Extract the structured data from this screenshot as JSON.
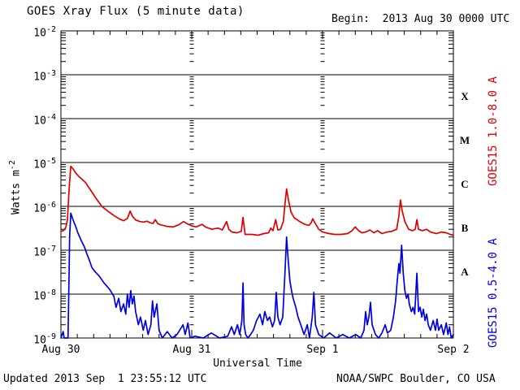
{
  "title": "GOES Xray Flux (5 minute data)",
  "begin_label": "Begin:  2013 Aug 30 0000 UTC",
  "footer": {
    "updated": "Updated 2013 Sep  1 23:55:12 UTC",
    "source": "NOAA/SWPC Boulder, CO USA"
  },
  "right_axis": {
    "classes": [
      "X",
      "M",
      "C",
      "B",
      "A"
    ],
    "series_labels": [
      {
        "text": "GOES15 1.0-8.0 A",
        "color": "#dd0000"
      },
      {
        "text": "GOES15 0.5-4.0 A",
        "color": "#0000dd"
      }
    ]
  },
  "colors": {
    "long_channel": "#dd0000",
    "short_channel": "#0000dd",
    "axis": "#000000",
    "background": "#ffffff"
  },
  "chart_data": {
    "type": "line",
    "title": "GOES Xray Flux (5 minute data)",
    "xlabel": "Universal Time",
    "ylabel_base": "Watts m",
    "ylabel_exp": "-2",
    "x_begin": "2013 Aug 30 0000 UTC",
    "x_range_hours": [
      0,
      72
    ],
    "x_tick_labels": [
      "Aug 30",
      "Aug 31",
      "Sep 1",
      "Sep 2"
    ],
    "x_tick_hours": [
      0,
      24,
      48,
      72
    ],
    "x_minor_tick_hours": 3,
    "y_scale": "log",
    "y_tick_exponents": [
      -2,
      -3,
      -4,
      -5,
      -6,
      -7,
      -8,
      -9
    ],
    "ylim": [
      1e-09,
      0.01
    ],
    "grid": true,
    "legend_position": "right-rotated",
    "series": [
      {
        "name": "GOES15 1.0-8.0 A",
        "color": "#dd0000",
        "points": [
          [
            0,
            2.7e-07
          ],
          [
            0.45,
            2.8e-07
          ],
          [
            0.9,
            3.3e-07
          ],
          [
            1.2,
            5e-07
          ],
          [
            1.5,
            2.5e-06
          ],
          [
            1.8,
            8.2e-06
          ],
          [
            2.2,
            7.2e-06
          ],
          [
            2.7,
            5.8e-06
          ],
          [
            3.3,
            4.8e-06
          ],
          [
            3.9,
            4.1e-06
          ],
          [
            4.5,
            3.5e-06
          ],
          [
            5.5,
            2.3e-06
          ],
          [
            6.4,
            1.55e-06
          ],
          [
            7.5,
            1e-06
          ],
          [
            8.7,
            7.6e-07
          ],
          [
            9.7,
            6.2e-07
          ],
          [
            10.7,
            5.2e-07
          ],
          [
            11.5,
            4.7e-07
          ],
          [
            12.2,
            5.3e-07
          ],
          [
            12.7,
            7.8e-07
          ],
          [
            13.1,
            6e-07
          ],
          [
            13.7,
            4.9e-07
          ],
          [
            14.5,
            4.5e-07
          ],
          [
            15.2,
            4.4e-07
          ],
          [
            15.8,
            4.6e-07
          ],
          [
            16.4,
            4.2e-07
          ],
          [
            16.9,
            4.1e-07
          ],
          [
            17.3,
            5e-07
          ],
          [
            17.8,
            4e-07
          ],
          [
            18.3,
            3.8e-07
          ],
          [
            19.4,
            3.5e-07
          ],
          [
            20.6,
            3.4e-07
          ],
          [
            21.6,
            3.8e-07
          ],
          [
            22.5,
            4.5e-07
          ],
          [
            23.2,
            4e-07
          ],
          [
            24.0,
            3.6e-07
          ],
          [
            24.8,
            3.4e-07
          ],
          [
            25.9,
            3.9e-07
          ],
          [
            26.5,
            3.4e-07
          ],
          [
            27.7,
            3e-07
          ],
          [
            28.8,
            3.2e-07
          ],
          [
            29.6,
            2.9e-07
          ],
          [
            30.4,
            4.5e-07
          ],
          [
            30.8,
            3e-07
          ],
          [
            31.4,
            2.6e-07
          ],
          [
            32.3,
            2.5e-07
          ],
          [
            33.1,
            2.7e-07
          ],
          [
            33.4,
            5.6e-07
          ],
          [
            33.8,
            2.3e-07
          ],
          [
            35.0,
            2.3e-07
          ],
          [
            36.2,
            2.2e-07
          ],
          [
            37.2,
            2.4e-07
          ],
          [
            38.1,
            2.5e-07
          ],
          [
            38.5,
            3.2e-07
          ],
          [
            38.9,
            2.8e-07
          ],
          [
            39.4,
            5e-07
          ],
          [
            39.8,
            2.9e-07
          ],
          [
            40.3,
            3e-07
          ],
          [
            40.8,
            4.5e-07
          ],
          [
            41.1,
            1.1e-06
          ],
          [
            41.4,
            2.5e-06
          ],
          [
            41.7,
            1.5e-06
          ],
          [
            42.2,
            7.5e-07
          ],
          [
            42.8,
            5.5e-07
          ],
          [
            43.7,
            4.6e-07
          ],
          [
            44.7,
            3.9e-07
          ],
          [
            45.5,
            3.7e-07
          ],
          [
            45.9,
            4.2e-07
          ],
          [
            46.2,
            5.2e-07
          ],
          [
            46.7,
            4e-07
          ],
          [
            47.3,
            3e-07
          ],
          [
            48.0,
            2.6e-07
          ],
          [
            49.2,
            2.4e-07
          ],
          [
            50.2,
            2.3e-07
          ],
          [
            51.4,
            2.3e-07
          ],
          [
            52.6,
            2.4e-07
          ],
          [
            53.4,
            2.8e-07
          ],
          [
            54.0,
            3.4e-07
          ],
          [
            54.6,
            2.8e-07
          ],
          [
            55.2,
            2.5e-07
          ],
          [
            55.9,
            2.6e-07
          ],
          [
            56.7,
            2.9e-07
          ],
          [
            57.4,
            2.5e-07
          ],
          [
            58.1,
            2.8e-07
          ],
          [
            58.9,
            2.4e-07
          ],
          [
            59.8,
            2.6e-07
          ],
          [
            60.7,
            2.7e-07
          ],
          [
            61.6,
            3e-07
          ],
          [
            62.0,
            6e-07
          ],
          [
            62.3,
            1.4e-06
          ],
          [
            62.6,
            8e-07
          ],
          [
            63.1,
            4.5e-07
          ],
          [
            63.8,
            3e-07
          ],
          [
            64.5,
            2.8e-07
          ],
          [
            65.0,
            3e-07
          ],
          [
            65.3,
            5e-07
          ],
          [
            65.6,
            3e-07
          ],
          [
            66.3,
            2.8e-07
          ],
          [
            67.1,
            3e-07
          ],
          [
            67.8,
            2.6e-07
          ],
          [
            68.9,
            2.4e-07
          ],
          [
            69.8,
            2.6e-07
          ],
          [
            70.7,
            2.5e-07
          ],
          [
            71.4,
            2.3e-07
          ],
          [
            72,
            2.2e-07
          ]
        ]
      },
      {
        "name": "GOES15 0.5-4.0 A",
        "color": "#0000dd",
        "points": [
          [
            0,
            1e-09
          ],
          [
            0.4,
            1.4e-09
          ],
          [
            0.6,
            1e-09
          ],
          [
            1.3,
            1e-09
          ],
          [
            1.45,
            1.2e-08
          ],
          [
            1.6,
            2e-07
          ],
          [
            1.8,
            7e-07
          ],
          [
            2.2,
            5e-07
          ],
          [
            2.7,
            3.5e-07
          ],
          [
            3.1,
            2.5e-07
          ],
          [
            3.7,
            1.7e-07
          ],
          [
            4.3,
            1.2e-07
          ],
          [
            4.8,
            8e-08
          ],
          [
            5.2,
            6e-08
          ],
          [
            5.7,
            4e-08
          ],
          [
            6.3,
            3.2e-08
          ],
          [
            7.0,
            2.6e-08
          ],
          [
            7.9,
            1.8e-08
          ],
          [
            8.9,
            1.3e-08
          ],
          [
            9.7,
            9e-09
          ],
          [
            10.1,
            5e-09
          ],
          [
            10.6,
            8e-09
          ],
          [
            11.0,
            4e-09
          ],
          [
            11.5,
            6e-09
          ],
          [
            11.9,
            3.5e-09
          ],
          [
            12.2,
            1e-08
          ],
          [
            12.5,
            5e-09
          ],
          [
            12.8,
            1.2e-08
          ],
          [
            13.1,
            6e-09
          ],
          [
            13.4,
            9e-09
          ],
          [
            13.7,
            4e-09
          ],
          [
            14.2,
            2e-09
          ],
          [
            14.6,
            3e-09
          ],
          [
            15.1,
            1.5e-09
          ],
          [
            15.5,
            2.5e-09
          ],
          [
            16.0,
            1.2e-09
          ],
          [
            16.5,
            2e-09
          ],
          [
            16.8,
            7e-09
          ],
          [
            17.1,
            3e-09
          ],
          [
            17.6,
            6e-09
          ],
          [
            18.0,
            1.5e-09
          ],
          [
            18.6,
            1e-09
          ],
          [
            19.5,
            1.4e-09
          ],
          [
            20.4,
            1e-09
          ],
          [
            21.3,
            1.2e-09
          ],
          [
            22.4,
            2e-09
          ],
          [
            22.8,
            1.2e-09
          ],
          [
            23.3,
            2.2e-09
          ],
          [
            23.7,
            1e-09
          ],
          [
            24.6,
            1.1e-09
          ],
          [
            26.1,
            1e-09
          ],
          [
            27.6,
            1.3e-09
          ],
          [
            29.1,
            1e-09
          ],
          [
            30.6,
            1.1e-09
          ],
          [
            31.3,
            1.8e-09
          ],
          [
            31.8,
            1.2e-09
          ],
          [
            32.4,
            2e-09
          ],
          [
            32.8,
            1.2e-09
          ],
          [
            33.2,
            2.5e-09
          ],
          [
            33.4,
            1.8e-08
          ],
          [
            33.6,
            2e-09
          ],
          [
            33.9,
            1.2e-09
          ],
          [
            34.3,
            1e-09
          ],
          [
            34.8,
            1.2e-09
          ],
          [
            35.3,
            1.5e-09
          ],
          [
            35.9,
            2.5e-09
          ],
          [
            36.5,
            3.5e-09
          ],
          [
            37.0,
            2e-09
          ],
          [
            37.4,
            4e-09
          ],
          [
            37.9,
            2.5e-09
          ],
          [
            38.3,
            3e-09
          ],
          [
            38.8,
            1.8e-09
          ],
          [
            39.2,
            2.5e-09
          ],
          [
            39.5,
            1.1e-08
          ],
          [
            39.8,
            3e-09
          ],
          [
            40.2,
            2e-09
          ],
          [
            40.7,
            3e-09
          ],
          [
            41.1,
            3e-08
          ],
          [
            41.4,
            2e-07
          ],
          [
            41.7,
            6e-08
          ],
          [
            42.0,
            2e-08
          ],
          [
            42.3,
            1.2e-08
          ],
          [
            42.6,
            8e-09
          ],
          [
            43.1,
            5e-09
          ],
          [
            43.5,
            3e-09
          ],
          [
            44.0,
            2e-09
          ],
          [
            44.6,
            1.2e-09
          ],
          [
            45.2,
            2e-09
          ],
          [
            45.6,
            1e-09
          ],
          [
            46.1,
            3e-09
          ],
          [
            46.4,
            1.1e-08
          ],
          [
            46.7,
            2e-09
          ],
          [
            47.3,
            1.2e-09
          ],
          [
            48.2,
            1e-09
          ],
          [
            49.3,
            1.3e-09
          ],
          [
            50.5,
            1e-09
          ],
          [
            51.7,
            1.2e-09
          ],
          [
            52.9,
            1e-09
          ],
          [
            54.1,
            1.2e-09
          ],
          [
            55.0,
            1e-09
          ],
          [
            55.6,
            1.5e-09
          ],
          [
            55.9,
            4e-09
          ],
          [
            56.2,
            2e-09
          ],
          [
            56.5,
            3e-09
          ],
          [
            56.8,
            6.5e-09
          ],
          [
            57.1,
            2e-09
          ],
          [
            57.7,
            1.2e-09
          ],
          [
            58.3,
            1e-09
          ],
          [
            58.9,
            1.3e-09
          ],
          [
            59.5,
            2e-09
          ],
          [
            59.9,
            1.3e-09
          ],
          [
            60.5,
            1.5e-09
          ],
          [
            61.0,
            3e-09
          ],
          [
            61.4,
            7e-09
          ],
          [
            61.7,
            2e-08
          ],
          [
            62.0,
            5e-08
          ],
          [
            62.2,
            3e-08
          ],
          [
            62.5,
            1.3e-07
          ],
          [
            62.8,
            3e-08
          ],
          [
            63.1,
            1.2e-08
          ],
          [
            63.4,
            8e-09
          ],
          [
            63.7,
            1e-08
          ],
          [
            63.9,
            6e-09
          ],
          [
            64.3,
            4e-09
          ],
          [
            64.6,
            5e-09
          ],
          [
            64.9,
            3.5e-09
          ],
          [
            65.3,
            3e-08
          ],
          [
            65.6,
            4e-09
          ],
          [
            65.9,
            5e-09
          ],
          [
            66.2,
            3e-09
          ],
          [
            66.5,
            4.5e-09
          ],
          [
            66.8,
            2.5e-09
          ],
          [
            67.1,
            3.5e-09
          ],
          [
            67.4,
            2e-09
          ],
          [
            67.8,
            1.5e-09
          ],
          [
            68.3,
            2.5e-09
          ],
          [
            68.7,
            1.5e-09
          ],
          [
            69.0,
            2.7e-09
          ],
          [
            69.3,
            1.5e-09
          ],
          [
            69.8,
            2e-09
          ],
          [
            70.2,
            1.2e-09
          ],
          [
            70.7,
            2.2e-09
          ],
          [
            71.0,
            1.2e-09
          ],
          [
            71.3,
            1.8e-09
          ],
          [
            71.6,
            1e-09
          ],
          [
            72,
            1.2e-09
          ]
        ]
      }
    ]
  }
}
